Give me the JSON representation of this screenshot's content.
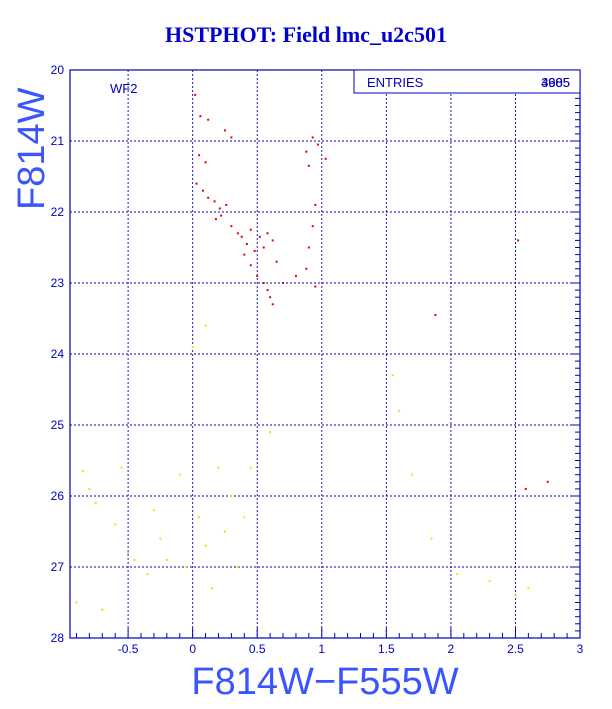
{
  "page": {
    "title": "HSTPHOT: Field lmc_u2c501"
  },
  "colors": {
    "frame": "#0000c0",
    "grid": "#0000c0",
    "axis_title": "#3a55ff",
    "series_red": "#e00000",
    "series_yellow": "#f0e000"
  },
  "chart_data": {
    "type": "scatter",
    "title": "HSTPHOT: Field lmc_u2c501",
    "xlabel": "F814W−F555W",
    "ylabel": "F814W",
    "xlim": [
      -0.95,
      3.0
    ],
    "ylim": [
      28,
      20
    ],
    "y_inverted": true,
    "grid": true,
    "xticks": [
      -0.5,
      0,
      0.5,
      1,
      1.5,
      2,
      2.5,
      3
    ],
    "xtick_labels": [
      "-0.5",
      "0",
      "0.5",
      "1",
      "1.5",
      "2",
      "2.5",
      "3"
    ],
    "yticks": [
      20,
      21,
      22,
      23,
      24,
      25,
      26,
      27,
      28
    ],
    "ytick_labels": [
      "20",
      "21",
      "22",
      "23",
      "24",
      "25",
      "26",
      "27",
      "28"
    ],
    "annotation": "WF2",
    "stats_box": {
      "label": "ENTRIES",
      "values": [
        "3985",
        "4605"
      ]
    },
    "series": [
      {
        "color": "#e00000",
        "points": [
          [
            0.02,
            20.35
          ],
          [
            0.06,
            20.65
          ],
          [
            0.12,
            20.7
          ],
          [
            0.25,
            20.85
          ],
          [
            0.3,
            20.95
          ],
          [
            0.88,
            21.15
          ],
          [
            0.93,
            20.95
          ],
          [
            0.97,
            21.05
          ],
          [
            1.03,
            21.25
          ],
          [
            0.9,
            21.35
          ],
          [
            0.05,
            21.2
          ],
          [
            0.1,
            21.3
          ],
          [
            0.03,
            21.6
          ],
          [
            0.08,
            21.7
          ],
          [
            0.12,
            21.8
          ],
          [
            0.17,
            21.85
          ],
          [
            0.21,
            21.95
          ],
          [
            0.26,
            21.9
          ],
          [
            0.18,
            22.1
          ],
          [
            0.22,
            22.05
          ],
          [
            0.3,
            22.2
          ],
          [
            0.35,
            22.3
          ],
          [
            0.45,
            22.25
          ],
          [
            0.52,
            22.35
          ],
          [
            0.58,
            22.3
          ],
          [
            0.62,
            22.4
          ],
          [
            0.55,
            22.5
          ],
          [
            0.95,
            21.9
          ],
          [
            0.93,
            22.2
          ],
          [
            0.9,
            22.5
          ],
          [
            0.88,
            22.8
          ],
          [
            0.95,
            23.05
          ],
          [
            0.8,
            22.9
          ],
          [
            0.7,
            23.0
          ],
          [
            0.65,
            22.7
          ],
          [
            1.88,
            23.45
          ],
          [
            2.52,
            22.4
          ],
          [
            2.75,
            25.8
          ],
          [
            2.58,
            25.9
          ],
          [
            0.4,
            22.6
          ],
          [
            0.45,
            22.75
          ],
          [
            0.5,
            22.9
          ],
          [
            0.55,
            23.0
          ],
          [
            0.48,
            22.55
          ],
          [
            0.42,
            22.45
          ],
          [
            0.38,
            22.35
          ],
          [
            0.58,
            23.1
          ],
          [
            0.6,
            23.2
          ],
          [
            0.62,
            23.3
          ]
        ]
      },
      {
        "color": "#f0e000",
        "points": [
          [
            -0.85,
            25.65
          ],
          [
            -0.8,
            25.9
          ],
          [
            -0.75,
            26.1
          ],
          [
            -0.6,
            26.4
          ],
          [
            -0.55,
            25.6
          ],
          [
            -0.5,
            26.8
          ],
          [
            -0.45,
            26.9
          ],
          [
            -0.35,
            27.1
          ],
          [
            -0.3,
            26.2
          ],
          [
            -0.25,
            26.6
          ],
          [
            -0.2,
            26.9
          ],
          [
            -0.1,
            25.7
          ],
          [
            -0.05,
            27.0
          ],
          [
            0.05,
            26.3
          ],
          [
            0.1,
            26.7
          ],
          [
            0.15,
            27.3
          ],
          [
            0.2,
            25.6
          ],
          [
            0.25,
            26.5
          ],
          [
            0.3,
            26.0
          ],
          [
            0.35,
            27.0
          ],
          [
            0.4,
            26.3
          ],
          [
            0.45,
            25.6
          ],
          [
            0.1,
            23.6
          ],
          [
            0.0,
            23.9
          ],
          [
            0.6,
            25.1
          ],
          [
            1.55,
            24.3
          ],
          [
            1.6,
            24.8
          ],
          [
            1.7,
            25.7
          ],
          [
            1.85,
            26.6
          ],
          [
            2.05,
            27.1
          ],
          [
            2.3,
            27.2
          ],
          [
            2.5,
            27.4
          ],
          [
            2.6,
            27.3
          ],
          [
            -0.9,
            27.5
          ],
          [
            -0.7,
            27.6
          ]
        ]
      }
    ]
  }
}
